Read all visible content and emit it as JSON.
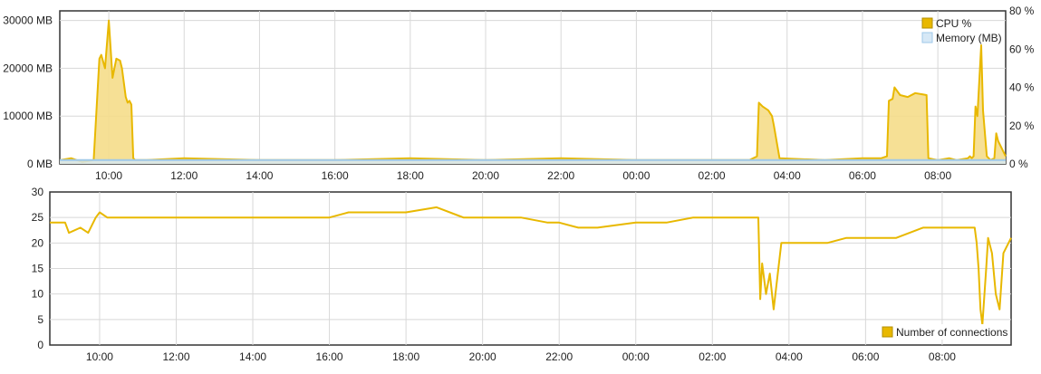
{
  "colors": {
    "cpu": "#e8b800",
    "cpu_fill": "#f5dd8a",
    "memory": "#9fc8e8",
    "memory_fill": "#d6e8f6",
    "connections": "#e8b800",
    "grid": "#d8d8d8",
    "frame": "#333333"
  },
  "chart_data": [
    {
      "type": "line",
      "x_ticks": [
        "10:00",
        "12:00",
        "14:00",
        "16:00",
        "18:00",
        "20:00",
        "22:00",
        "00:00",
        "02:00",
        "04:00",
        "06:00",
        "08:00"
      ],
      "y_left_ticks": [
        "0 MB",
        "10000 MB",
        "20000 MB",
        "30000 MB"
      ],
      "y_left_values": [
        0,
        10000,
        20000,
        30000
      ],
      "y_left_range": [
        0,
        32000
      ],
      "y_right_ticks": [
        "0 %",
        "20 %",
        "40 %",
        "60 %",
        "80 %"
      ],
      "y_right_values": [
        0,
        20,
        40,
        60,
        80
      ],
      "y_right_range": [
        0,
        80
      ],
      "x_range_hours": [
        8.7,
        33.8
      ],
      "grid": true,
      "legend_position": "top-right",
      "legend": [
        "CPU %",
        "Memory (MB)"
      ],
      "series": [
        {
          "name": "CPU %",
          "axis": "right",
          "x_hours": [
            8.7,
            9.0,
            9.3,
            9.6,
            9.75,
            9.8,
            9.9,
            10.0,
            10.1,
            10.2,
            10.3,
            10.35,
            10.45,
            10.5,
            10.55,
            10.6,
            10.65,
            10.7,
            11.0,
            12.0,
            14.0,
            16.0,
            18.0,
            20.0,
            22.0,
            24.0,
            26.0,
            27.0,
            27.2,
            27.25,
            27.35,
            27.5,
            27.6,
            27.65,
            27.8,
            29.0,
            30.0,
            30.5,
            30.65,
            30.7,
            30.8,
            30.85,
            31.0,
            31.2,
            31.4,
            31.7,
            31.75,
            32.0,
            32.3,
            32.5,
            32.8,
            32.85,
            32.9,
            32.95,
            33.0,
            33.05,
            33.15,
            33.2,
            33.3,
            33.4,
            33.5,
            33.55,
            33.6,
            33.8
          ],
          "values": [
            2,
            3,
            1,
            2,
            55,
            57,
            50,
            75,
            45,
            55,
            54,
            50,
            35,
            32,
            33,
            31,
            3,
            2,
            2,
            3,
            2,
            2,
            3,
            2,
            3,
            2,
            2,
            2,
            4,
            32,
            30,
            28,
            25,
            20,
            3,
            2,
            3,
            3,
            4,
            33,
            34,
            40,
            36,
            35,
            37,
            36,
            3,
            2,
            3,
            2,
            3,
            4,
            3,
            4,
            30,
            25,
            62,
            28,
            4,
            2,
            3,
            16,
            12,
            4
          ]
        },
        {
          "name": "Memory (MB)",
          "axis": "left",
          "x_hours": [
            8.7,
            33.8
          ],
          "values": [
            800,
            800
          ]
        }
      ]
    },
    {
      "type": "line",
      "x_ticks": [
        "10:00",
        "12:00",
        "14:00",
        "16:00",
        "18:00",
        "20:00",
        "22:00",
        "00:00",
        "02:00",
        "04:00",
        "06:00",
        "08:00"
      ],
      "y_ticks": [
        "0",
        "5",
        "10",
        "15",
        "20",
        "25",
        "30"
      ],
      "y_values": [
        0,
        5,
        10,
        15,
        20,
        25,
        30
      ],
      "y_range": [
        0,
        30
      ],
      "x_range_hours": [
        8.7,
        33.8
      ],
      "grid": true,
      "legend_position": "bottom-right",
      "legend": [
        "Number of connections"
      ],
      "series": [
        {
          "name": "Number of connections",
          "x_hours": [
            8.7,
            9.1,
            9.2,
            9.5,
            9.7,
            9.9,
            10.0,
            10.2,
            11.0,
            12.0,
            14.0,
            15.0,
            16.0,
            16.5,
            17.0,
            18.0,
            18.8,
            19.5,
            20.0,
            21.0,
            21.7,
            22.0,
            22.5,
            23.0,
            24.0,
            24.8,
            25.5,
            26.3,
            26.8,
            27.2,
            27.25,
            27.3,
            27.4,
            27.5,
            27.6,
            27.8,
            28.0,
            28.3,
            29.0,
            29.5,
            30.0,
            30.5,
            30.8,
            31.5,
            32.0,
            32.6,
            32.85,
            32.9,
            32.95,
            33.0,
            33.05,
            33.15,
            33.2,
            33.3,
            33.4,
            33.5,
            33.6,
            33.8
          ],
          "values": [
            24,
            24,
            22,
            23,
            22,
            25,
            26,
            25,
            25,
            25,
            25,
            25,
            25,
            26,
            26,
            26,
            27,
            25,
            25,
            25,
            24,
            24,
            23,
            23,
            24,
            24,
            25,
            25,
            25,
            25,
            9,
            16,
            10,
            14,
            7,
            20,
            20,
            20,
            20,
            21,
            21,
            21,
            21,
            23,
            23,
            23,
            23,
            20,
            15,
            7,
            4,
            15,
            21,
            18,
            10,
            7,
            18,
            21
          ]
        }
      ]
    }
  ]
}
